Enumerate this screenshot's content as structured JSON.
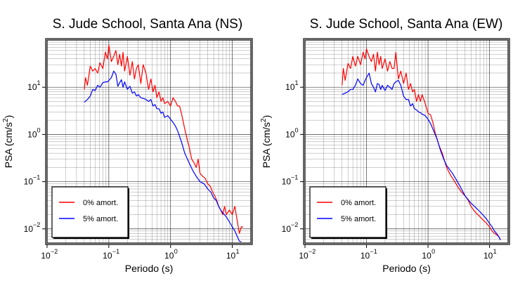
{
  "chart_data": [
    {
      "type": "line",
      "title": "S. Jude School, Santa Ana (NS)",
      "xlabel": "Periodo (s)",
      "ylabel_main": "PSA (cm/s",
      "ylabel_sup": "2",
      "ylabel_end": ")",
      "xscale": "log",
      "yscale": "log",
      "xlim": [
        0.01,
        20
      ],
      "ylim": [
        0.005,
        100
      ],
      "grid": true,
      "legend_position": "bottom-left",
      "x_ticks": [
        {
          "value": 0.01,
          "base": "10",
          "exp": "−2"
        },
        {
          "value": 0.1,
          "base": "10",
          "exp": "−1"
        },
        {
          "value": 1,
          "base": "10",
          "exp": "0"
        },
        {
          "value": 10,
          "base": "10",
          "exp": "1"
        }
      ],
      "y_ticks": [
        {
          "value": 0.01,
          "base": "10",
          "exp": "−2"
        },
        {
          "value": 0.1,
          "base": "10",
          "exp": "−1"
        },
        {
          "value": 1,
          "base": "10",
          "exp": "0"
        },
        {
          "value": 10,
          "base": "10",
          "exp": "1"
        }
      ],
      "series": [
        {
          "name": "0% amort.",
          "color": "#ff0000",
          "x": [
            0.04,
            0.042,
            0.045,
            0.05,
            0.055,
            0.06,
            0.066,
            0.072,
            0.08,
            0.088,
            0.095,
            0.1,
            0.11,
            0.12,
            0.13,
            0.14,
            0.15,
            0.16,
            0.17,
            0.18,
            0.2,
            0.22,
            0.24,
            0.26,
            0.28,
            0.3,
            0.33,
            0.36,
            0.4,
            0.44,
            0.48,
            0.52,
            0.56,
            0.6,
            0.65,
            0.7,
            0.75,
            0.8,
            0.9,
            1.0,
            1.1,
            1.2,
            1.3,
            1.4,
            1.5,
            1.7,
            1.9,
            2.0,
            2.2,
            2.4,
            2.6,
            2.8,
            3.0,
            3.3,
            3.6,
            4.0,
            4.4,
            4.8,
            5.2,
            5.6,
            6.0,
            6.5,
            7.0,
            7.5,
            8.0,
            9.0,
            10.0,
            11.0,
            12.0,
            13.0,
            14.0,
            15.0
          ],
          "y": [
            9,
            16,
            11,
            28,
            22,
            25,
            20,
            33,
            25,
            55,
            40,
            78,
            35,
            45,
            60,
            30,
            50,
            28,
            55,
            22,
            45,
            18,
            35,
            15,
            25,
            30,
            12,
            30,
            20,
            9,
            15,
            8,
            11,
            6,
            8,
            5,
            6,
            4.5,
            5,
            4,
            6,
            5,
            4,
            4,
            2.8,
            1.3,
            0.7,
            0.55,
            0.3,
            0.25,
            0.2,
            0.3,
            0.15,
            0.13,
            0.12,
            0.09,
            0.08,
            0.06,
            0.05,
            0.04,
            0.03,
            0.025,
            0.02,
            0.03,
            0.02,
            0.025,
            0.02,
            0.03,
            0.015,
            0.008,
            0.011,
            0.011
          ]
        },
        {
          "name": "5% amort.",
          "color": "#0000ff",
          "x": [
            0.04,
            0.045,
            0.05,
            0.055,
            0.06,
            0.066,
            0.072,
            0.08,
            0.088,
            0.095,
            0.1,
            0.11,
            0.12,
            0.13,
            0.14,
            0.15,
            0.16,
            0.17,
            0.18,
            0.2,
            0.22,
            0.24,
            0.26,
            0.28,
            0.3,
            0.33,
            0.36,
            0.4,
            0.44,
            0.48,
            0.52,
            0.56,
            0.6,
            0.65,
            0.7,
            0.75,
            0.8,
            0.9,
            1.0,
            1.1,
            1.2,
            1.3,
            1.5,
            1.7,
            2.0,
            2.3,
            2.6,
            3.0,
            3.5,
            4.0,
            4.5,
            5.0,
            5.5,
            6.0,
            6.5,
            7.0,
            8.0,
            9.0,
            10.0,
            11.0,
            12.0,
            13.0,
            14.0
          ],
          "y": [
            4.8,
            5.5,
            6.5,
            9,
            8.5,
            11,
            10,
            12.5,
            13,
            13,
            14,
            16,
            22,
            19,
            10.5,
            12.5,
            14.5,
            10,
            13,
            9,
            10.5,
            7.5,
            8,
            6.5,
            7,
            6,
            5.8,
            5.5,
            5,
            5.5,
            4,
            4.3,
            3.5,
            3.5,
            2.8,
            3,
            2.3,
            2.5,
            2.1,
            1.8,
            1.5,
            1.2,
            0.7,
            0.4,
            0.25,
            0.17,
            0.13,
            0.1,
            0.09,
            0.07,
            0.06,
            0.045,
            0.04,
            0.03,
            0.025,
            0.022,
            0.018,
            0.014,
            0.011,
            0.009,
            0.007,
            0.0055,
            0.0053
          ]
        }
      ]
    },
    {
      "type": "line",
      "title": "S. Jude School, Santa Ana (EW)",
      "xlabel": "Periodo (s)",
      "ylabel_main": "PSA (cm/s",
      "ylabel_sup": "2",
      "ylabel_end": ")",
      "xscale": "log",
      "yscale": "log",
      "xlim": [
        0.01,
        20
      ],
      "ylim": [
        0.005,
        100
      ],
      "grid": true,
      "legend_position": "bottom-left",
      "x_ticks": [
        {
          "value": 0.01,
          "base": "10",
          "exp": "−2"
        },
        {
          "value": 0.1,
          "base": "10",
          "exp": "−1"
        },
        {
          "value": 1,
          "base": "10",
          "exp": "0"
        },
        {
          "value": 10,
          "base": "10",
          "exp": "1"
        }
      ],
      "y_ticks": [
        {
          "value": 0.01,
          "base": "10",
          "exp": "−2"
        },
        {
          "value": 0.1,
          "base": "10",
          "exp": "−1"
        },
        {
          "value": 1,
          "base": "10",
          "exp": "0"
        },
        {
          "value": 10,
          "base": "10",
          "exp": "1"
        }
      ],
      "series": [
        {
          "name": "0% amort.",
          "color": "#ff0000",
          "x": [
            0.04,
            0.042,
            0.045,
            0.05,
            0.055,
            0.06,
            0.066,
            0.072,
            0.08,
            0.088,
            0.095,
            0.1,
            0.11,
            0.12,
            0.13,
            0.14,
            0.15,
            0.16,
            0.17,
            0.18,
            0.2,
            0.22,
            0.24,
            0.26,
            0.28,
            0.3,
            0.33,
            0.36,
            0.4,
            0.44,
            0.48,
            0.52,
            0.56,
            0.6,
            0.65,
            0.7,
            0.75,
            0.8,
            0.9,
            1.0,
            1.1,
            1.2,
            1.3,
            1.5,
            1.7,
            2.0,
            2.3,
            2.6,
            3.0,
            3.5,
            4.0,
            4.5,
            5.0,
            5.5,
            6.0,
            7.0,
            8.0,
            9.0,
            10.0,
            11.0,
            12.0,
            13.0,
            14.0,
            15.0
          ],
          "y": [
            11,
            25,
            14,
            32,
            25,
            45,
            28,
            45,
            30,
            55,
            40,
            65,
            45,
            35,
            50,
            22,
            55,
            30,
            45,
            25,
            40,
            22,
            35,
            25,
            25,
            55,
            15,
            22,
            12,
            20,
            9,
            12,
            8,
            9,
            5,
            7,
            5,
            7,
            4.5,
            2.8,
            2.6,
            1.8,
            1.1,
            0.6,
            0.4,
            0.2,
            0.14,
            0.11,
            0.08,
            0.06,
            0.05,
            0.04,
            0.03,
            0.025,
            0.022,
            0.018,
            0.015,
            0.013,
            0.011,
            0.009,
            0.008,
            0.0075,
            0.007,
            0.006
          ]
        },
        {
          "name": "5% amort.",
          "color": "#0000ff",
          "x": [
            0.04,
            0.045,
            0.05,
            0.055,
            0.06,
            0.066,
            0.072,
            0.08,
            0.088,
            0.095,
            0.1,
            0.11,
            0.12,
            0.13,
            0.14,
            0.15,
            0.16,
            0.17,
            0.18,
            0.2,
            0.22,
            0.24,
            0.26,
            0.28,
            0.3,
            0.33,
            0.36,
            0.4,
            0.44,
            0.48,
            0.52,
            0.56,
            0.6,
            0.65,
            0.7,
            0.75,
            0.8,
            0.9,
            1.0,
            1.1,
            1.2,
            1.4,
            1.6,
            1.8,
            2.0,
            2.5,
            3.0,
            3.5,
            4.0,
            5.0,
            6.0,
            7.0,
            8.0,
            9.0,
            10.0,
            11.0,
            12.0,
            13.0,
            14.0,
            15.0
          ],
          "y": [
            7,
            7.5,
            8,
            9,
            9,
            11,
            15,
            12,
            11,
            14,
            16,
            20,
            12,
            10,
            8,
            12,
            11.5,
            9,
            11,
            8.5,
            11,
            10,
            9,
            12,
            13,
            14,
            11,
            6.5,
            5.5,
            5.5,
            4,
            4.5,
            3.5,
            3.3,
            3,
            2.9,
            2.7,
            2.5,
            2.1,
            1.7,
            1.3,
            0.8,
            0.45,
            0.3,
            0.22,
            0.15,
            0.1,
            0.07,
            0.05,
            0.035,
            0.028,
            0.023,
            0.019,
            0.016,
            0.013,
            0.011,
            0.009,
            0.008,
            0.007,
            0.0058
          ]
        }
      ]
    }
  ]
}
